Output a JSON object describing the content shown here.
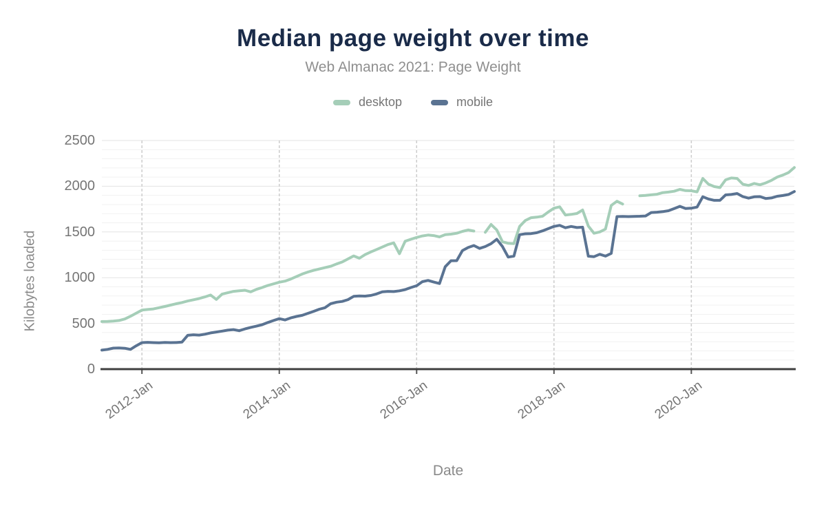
{
  "chart_data": {
    "type": "line",
    "title": "Median page weight over time",
    "subtitle": "Web Almanac 2021: Page Weight",
    "xlabel": "Date",
    "ylabel": "Kilobytes loaded",
    "ylim": [
      0,
      2500
    ],
    "yticks": [
      0,
      500,
      1000,
      1500,
      2000,
      2500
    ],
    "ytick_minor_step": 100,
    "grid": "horizontal-minor-and-major, dashed vertical year gridlines",
    "legend_position": "top-center",
    "colors": {
      "title": "#1a2b49",
      "subtitle": "#8f8f8f",
      "axis_text": "#757575",
      "axis_line": "#3f3f3f",
      "grid_major": "#e3e3e3",
      "grid_minor": "#f1f1f1",
      "grid_vertical_dashed": "#cccccc"
    },
    "xticks": [
      {
        "label": "2012-Jan",
        "month": "2012-01"
      },
      {
        "label": "2014-Jan",
        "month": "2014-01"
      },
      {
        "label": "2016-Jan",
        "month": "2016-01"
      },
      {
        "label": "2018-Jan",
        "month": "2018-01"
      },
      {
        "label": "2020-Jan",
        "month": "2020-01"
      }
    ],
    "x": [
      "2011-06",
      "2011-07",
      "2011-08",
      "2011-09",
      "2011-10",
      "2011-11",
      "2011-12",
      "2012-01",
      "2012-02",
      "2012-03",
      "2012-04",
      "2012-05",
      "2012-06",
      "2012-07",
      "2012-08",
      "2012-09",
      "2012-10",
      "2012-11",
      "2012-12",
      "2013-01",
      "2013-02",
      "2013-03",
      "2013-04",
      "2013-05",
      "2013-06",
      "2013-07",
      "2013-08",
      "2013-09",
      "2013-10",
      "2013-11",
      "2013-12",
      "2014-01",
      "2014-02",
      "2014-03",
      "2014-04",
      "2014-05",
      "2014-06",
      "2014-07",
      "2014-08",
      "2014-09",
      "2014-10",
      "2014-11",
      "2014-12",
      "2015-01",
      "2015-02",
      "2015-03",
      "2015-04",
      "2015-05",
      "2015-06",
      "2015-07",
      "2015-08",
      "2015-09",
      "2015-10",
      "2015-11",
      "2015-12",
      "2016-01",
      "2016-02",
      "2016-03",
      "2016-04",
      "2016-05",
      "2016-06",
      "2016-07",
      "2016-08",
      "2016-09",
      "2016-10",
      "2016-11",
      "2016-12",
      "2017-01",
      "2017-02",
      "2017-03",
      "2017-04",
      "2017-05",
      "2017-06",
      "2017-07",
      "2017-08",
      "2017-09",
      "2017-10",
      "2017-11",
      "2017-12",
      "2018-01",
      "2018-02",
      "2018-03",
      "2018-04",
      "2018-05",
      "2018-06",
      "2018-07",
      "2018-08",
      "2018-09",
      "2018-10",
      "2018-11",
      "2018-12",
      "2019-01",
      "2019-02",
      "2019-03",
      "2019-04",
      "2019-05",
      "2019-06",
      "2019-07",
      "2019-08",
      "2019-09",
      "2019-10",
      "2019-11",
      "2019-12",
      "2020-01",
      "2020-02",
      "2020-03",
      "2020-04",
      "2020-05",
      "2020-06",
      "2020-07",
      "2020-08",
      "2020-09",
      "2020-10",
      "2020-11",
      "2020-12",
      "2021-01",
      "2021-02",
      "2021-03",
      "2021-04",
      "2021-05",
      "2021-06",
      "2021-07"
    ],
    "series": [
      {
        "name": "desktop",
        "color": "#a5ceb8",
        "values": [
          520,
          522,
          525,
          532,
          548,
          578,
          612,
          645,
          652,
          658,
          672,
          685,
          700,
          715,
          728,
          745,
          758,
          772,
          790,
          810,
          762,
          820,
          835,
          850,
          856,
          862,
          845,
          872,
          892,
          915,
          932,
          950,
          962,
          985,
          1012,
          1040,
          1062,
          1080,
          1095,
          1110,
          1125,
          1150,
          1172,
          1205,
          1238,
          1212,
          1252,
          1282,
          1308,
          1335,
          1362,
          1380,
          1262,
          1398,
          1420,
          1440,
          1456,
          1466,
          1460,
          1446,
          1470,
          1476,
          1486,
          1506,
          1522,
          1510,
          null,
          1496,
          1582,
          1522,
          1392,
          1376,
          1372,
          1560,
          1625,
          1656,
          1662,
          1672,
          1718,
          1760,
          1775,
          1685,
          1692,
          1702,
          1740,
          1565,
          1486,
          1500,
          1532,
          1790,
          1836,
          1805,
          null,
          null,
          1895,
          1900,
          1906,
          1912,
          1930,
          1936,
          1945,
          1965,
          1952,
          1950,
          1938,
          2085,
          2022,
          1996,
          1985,
          2070,
          2090,
          2085,
          2022,
          2008,
          2030,
          2016,
          2036,
          2064,
          2100,
          2122,
          2150,
          2205
        ]
      },
      {
        "name": "mobile",
        "color": "#5a7392",
        "values": [
          208,
          216,
          230,
          232,
          228,
          216,
          255,
          290,
          293,
          290,
          288,
          292,
          290,
          291,
          296,
          370,
          376,
          372,
          382,
          396,
          406,
          416,
          426,
          432,
          420,
          440,
          456,
          470,
          486,
          510,
          532,
          552,
          538,
          560,
          576,
          588,
          610,
          632,
          655,
          672,
          716,
          732,
          740,
          760,
          796,
          800,
          798,
          806,
          822,
          846,
          850,
          848,
          856,
          870,
          892,
          912,
          956,
          970,
          952,
          936,
          1120,
          1185,
          1186,
          1296,
          1330,
          1352,
          1320,
          1340,
          1372,
          1420,
          1340,
          1225,
          1236,
          1470,
          1480,
          1482,
          1492,
          1512,
          1536,
          1560,
          1572,
          1546,
          1560,
          1548,
          1552,
          1235,
          1230,
          1256,
          1236,
          1266,
          1668,
          1670,
          1668,
          1670,
          1672,
          1675,
          1712,
          1716,
          1722,
          1732,
          1755,
          1780,
          1756,
          1760,
          1772,
          1885,
          1860,
          1846,
          1846,
          1905,
          1910,
          1920,
          1886,
          1870,
          1884,
          1886,
          1866,
          1872,
          1890,
          1898,
          1910,
          1942
        ]
      }
    ]
  }
}
